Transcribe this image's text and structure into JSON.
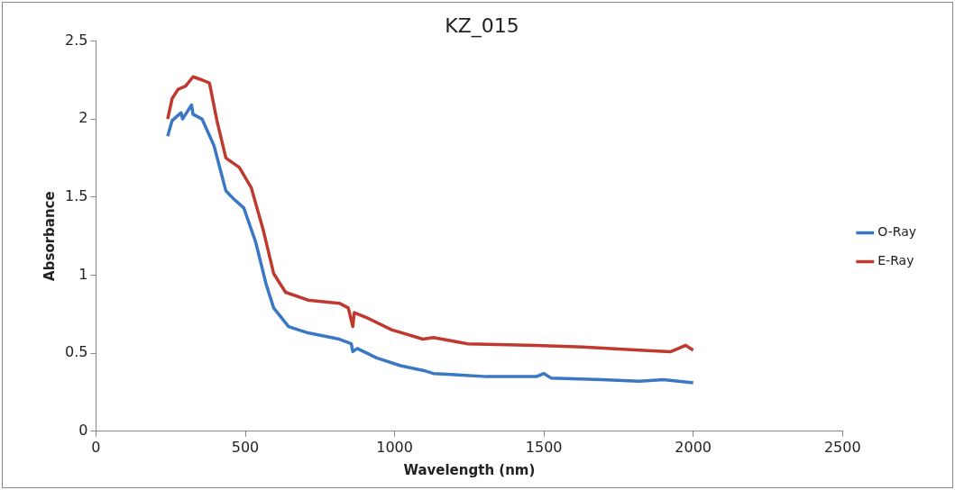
{
  "chart_data": {
    "type": "line",
    "title": "KZ_015",
    "xlabel": "Wavelength (nm)",
    "ylabel": "Absorbance",
    "xlim": [
      0,
      2500
    ],
    "xticks": [
      0,
      500,
      1000,
      1500,
      2000,
      2500
    ],
    "ylim": [
      0,
      2.5
    ],
    "yticks": [
      0,
      0.5,
      1,
      1.5,
      2,
      2.5
    ],
    "grid": false,
    "legend": "right",
    "marker": "none",
    "line_style": "solid",
    "series": [
      {
        "name": "O-Ray",
        "color": "#3b78c4",
        "x": [
          240,
          255,
          285,
          290,
          320,
          325,
          355,
          395,
          435,
          460,
          495,
          535,
          570,
          595,
          645,
          710,
          815,
          855,
          860,
          875,
          940,
          1020,
          1095,
          1130,
          1310,
          1475,
          1500,
          1525,
          1695,
          1820,
          1900,
          2000
        ],
        "values": [
          1.89,
          1.99,
          2.04,
          2.0,
          2.09,
          2.03,
          2.0,
          1.83,
          1.54,
          1.49,
          1.43,
          1.21,
          0.94,
          0.79,
          0.67,
          0.63,
          0.59,
          0.56,
          0.51,
          0.53,
          0.47,
          0.42,
          0.39,
          0.37,
          0.35,
          0.35,
          0.37,
          0.34,
          0.33,
          0.32,
          0.33,
          0.31
        ]
      },
      {
        "name": "E-Ray",
        "color": "#c0392f",
        "x": [
          240,
          255,
          275,
          300,
          325,
          355,
          380,
          405,
          435,
          480,
          520,
          560,
          595,
          635,
          710,
          815,
          845,
          860,
          865,
          915,
          990,
          1095,
          1130,
          1245,
          1475,
          1630,
          1820,
          1925,
          1975,
          2000
        ],
        "values": [
          2.0,
          2.13,
          2.19,
          2.21,
          2.27,
          2.25,
          2.23,
          1.99,
          1.75,
          1.69,
          1.56,
          1.29,
          1.01,
          0.89,
          0.84,
          0.82,
          0.79,
          0.67,
          0.76,
          0.72,
          0.65,
          0.59,
          0.6,
          0.56,
          0.55,
          0.54,
          0.52,
          0.51,
          0.55,
          0.52
        ]
      }
    ]
  }
}
